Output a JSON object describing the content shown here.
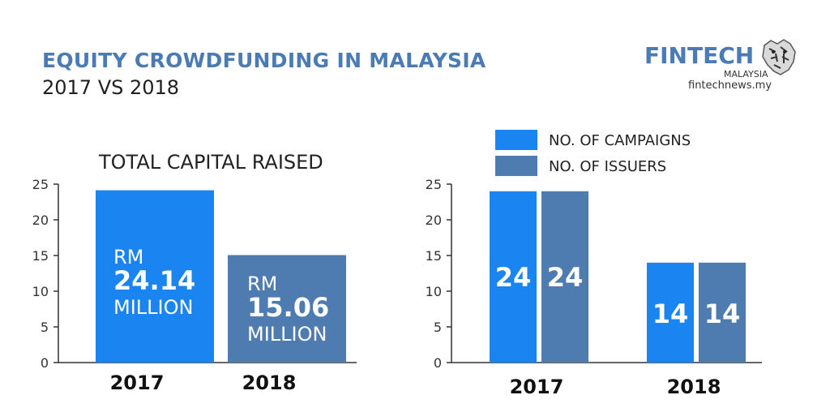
{
  "header": {
    "title": "EQUITY CROWDFUNDING IN MALAYSIA",
    "subtitle": "2017 VS 2018"
  },
  "logo": {
    "name": "FINTECH",
    "sub": "MALAYSIA",
    "url": "fintechnews.my"
  },
  "colors": {
    "title": "#4b7bb5",
    "bar_bright": "#1a85f0",
    "bar_steel": "#4f7cb0",
    "axis": "#333333"
  },
  "chart_data": [
    {
      "type": "bar",
      "title": "TOTAL CAPITAL RAISED",
      "categories": [
        "2017",
        "2018"
      ],
      "values": [
        24.14,
        15.06
      ],
      "ylim": [
        0,
        25
      ],
      "yticks": [
        "0",
        "5",
        "10",
        "15",
        "20",
        "25"
      ],
      "bar_labels": [
        {
          "prefix": "RM",
          "value": "24.14",
          "suffix": "MILLION"
        },
        {
          "prefix": "RM",
          "value": "15.06",
          "suffix": "MILLION"
        }
      ],
      "grid": false
    },
    {
      "type": "bar",
      "title": "",
      "categories": [
        "2017",
        "2018"
      ],
      "series": [
        {
          "name": "NO. OF CAMPAIGNS",
          "values": [
            24,
            14
          ],
          "labels": [
            "24",
            "14"
          ]
        },
        {
          "name": "NO. OF ISSUERS",
          "values": [
            24,
            14
          ],
          "labels": [
            "24",
            "14"
          ]
        }
      ],
      "ylim": [
        0,
        25
      ],
      "yticks": [
        "0",
        "5",
        "10",
        "15",
        "20",
        "25"
      ],
      "legend": "top",
      "grid": false
    }
  ]
}
